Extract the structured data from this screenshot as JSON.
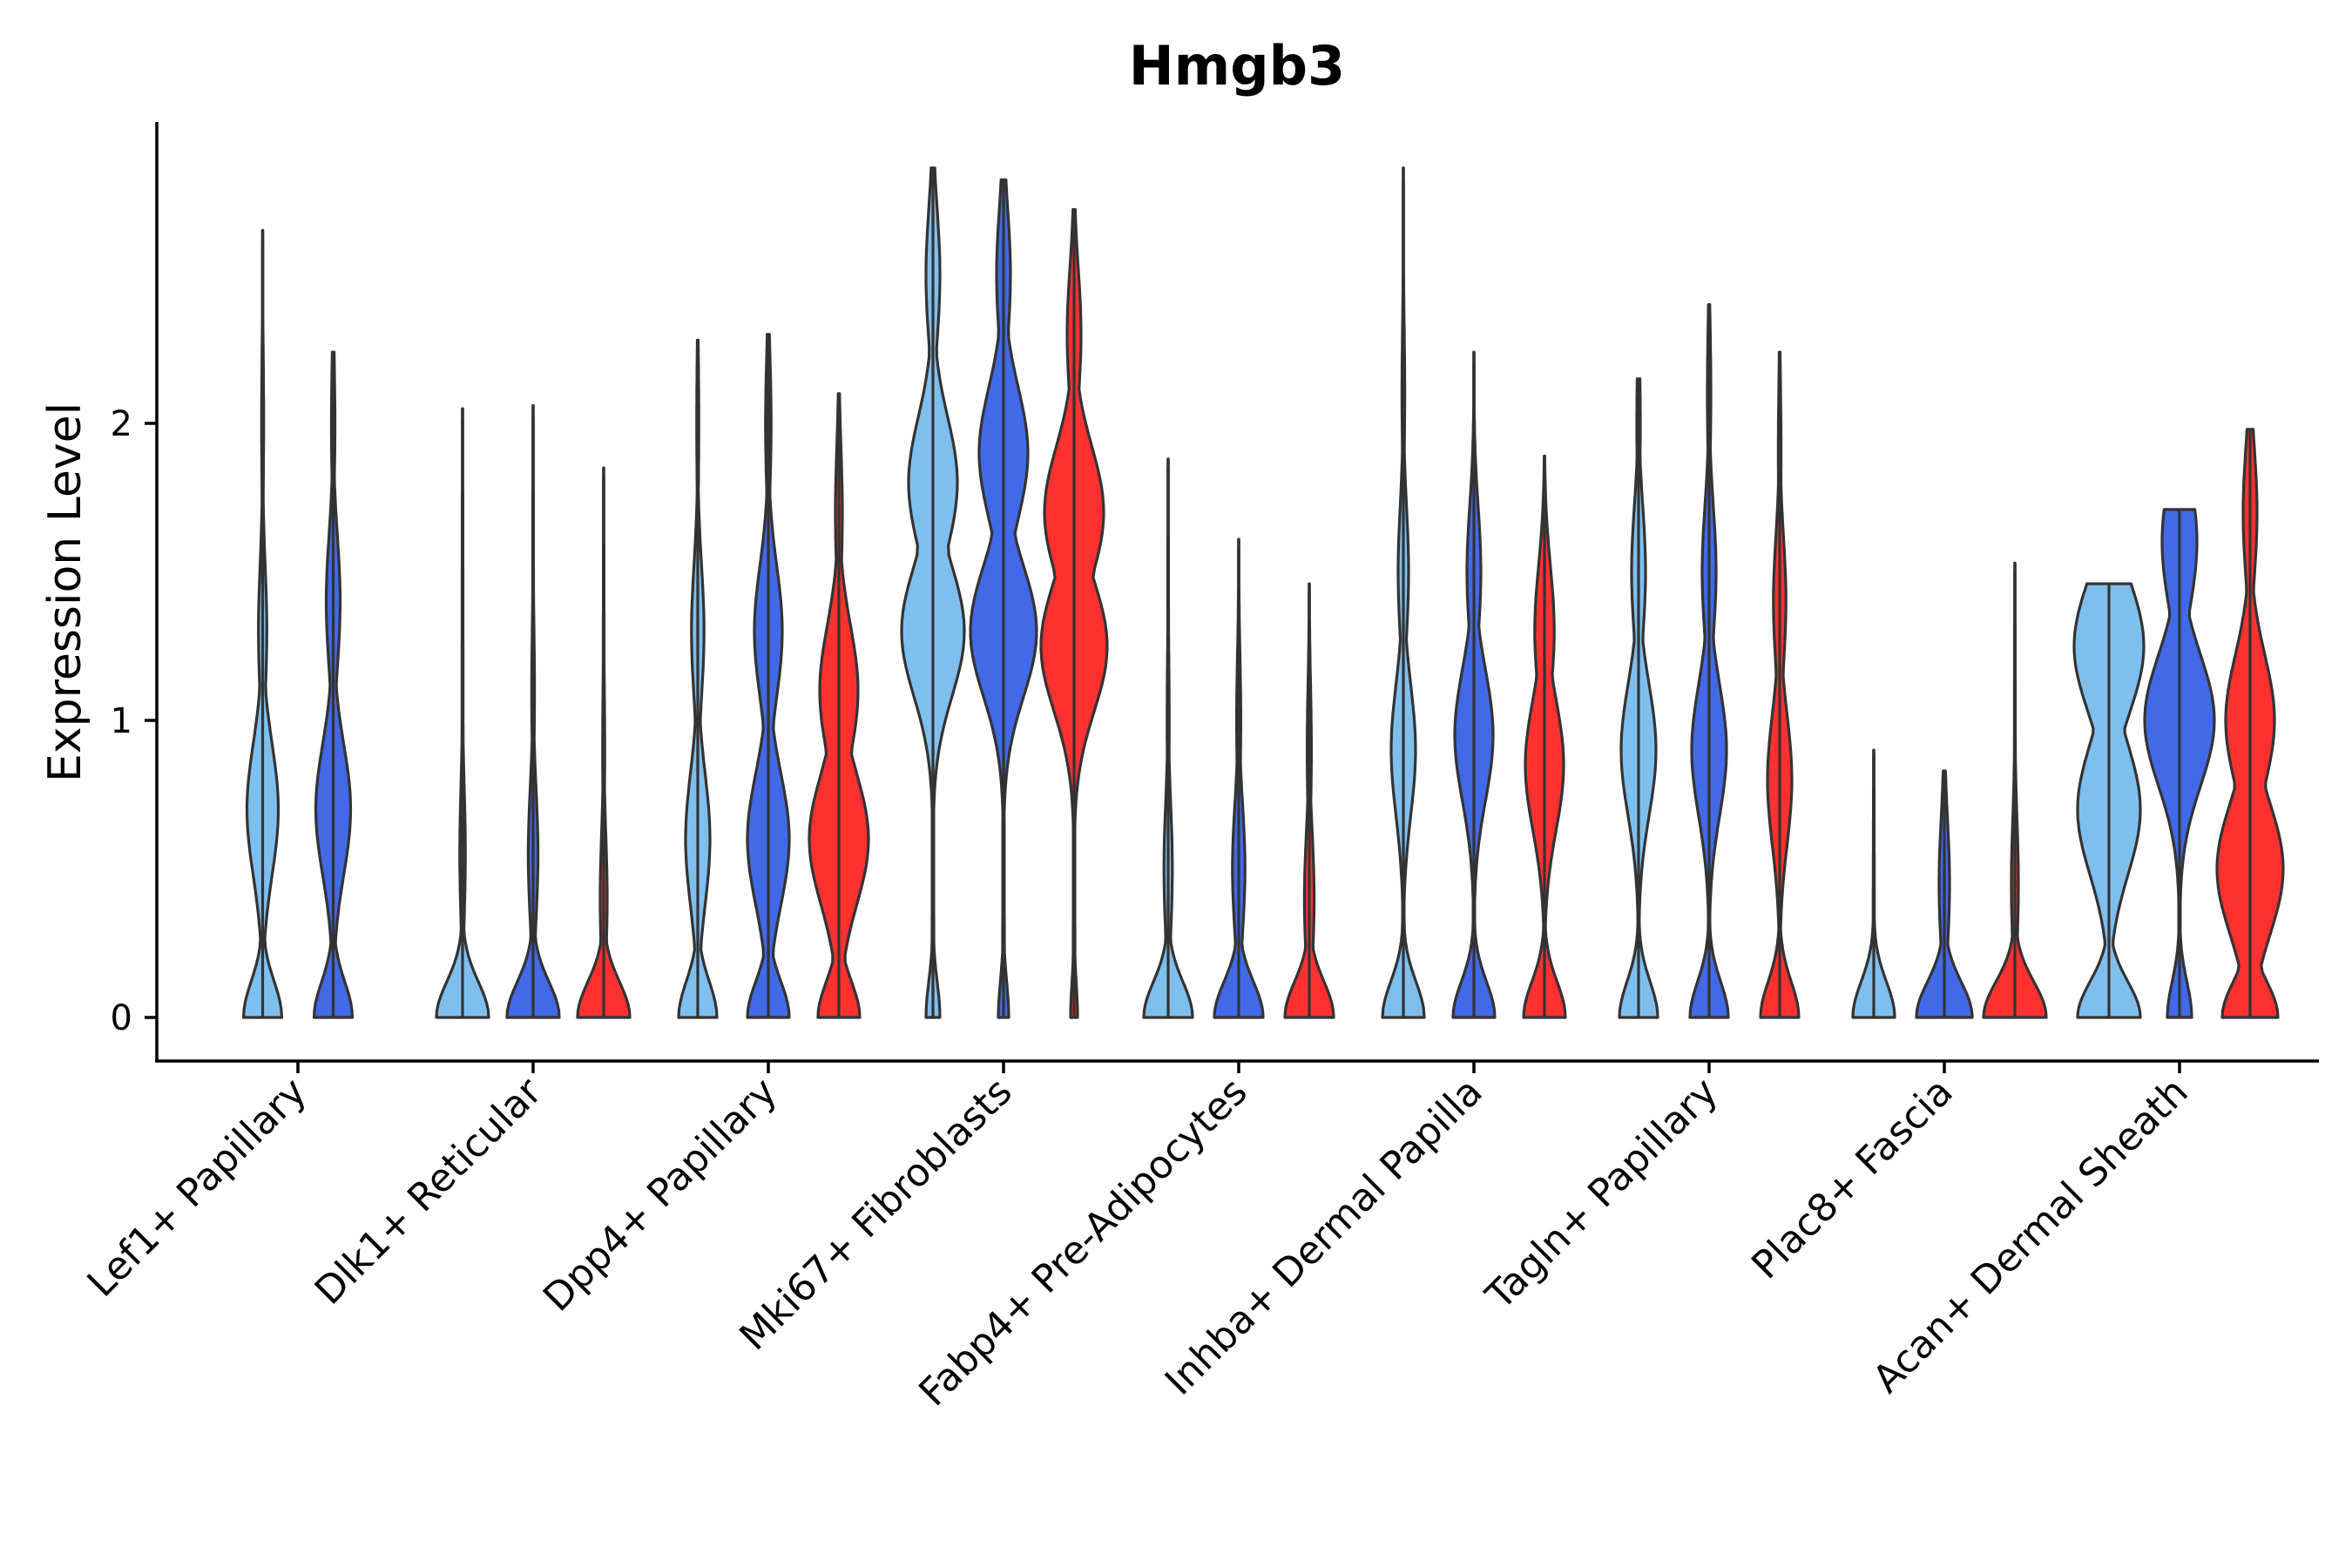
{
  "chart_data": {
    "type": "violin",
    "title": "Hmgb3",
    "xlabel": "",
    "ylabel": "Expression Level",
    "ylim": [
      -0.14,
      3.0
    ],
    "yticks": [
      0,
      1,
      2
    ],
    "grid": false,
    "legend": "none",
    "colors": [
      "#7FBFEE",
      "#4169E8",
      "#FF3030"
    ],
    "stroke": "#333333",
    "categories": [
      {
        "name": "Lef1+ Papillary",
        "violins": [
          {
            "max": 2.65,
            "modes": [
              [
                0.0,
                0.55
              ],
              [
                0.7,
                0.45
              ],
              [
                1.3,
                0.12
              ],
              [
                2.0,
                0.03
              ]
            ]
          },
          {
            "max": 2.24,
            "modes": [
              [
                0.0,
                0.55
              ],
              [
                0.7,
                0.5
              ],
              [
                1.4,
                0.2
              ],
              [
                2.0,
                0.05
              ]
            ]
          }
        ]
      },
      {
        "name": "Dlk1+ Reticular",
        "violins": [
          {
            "max": 2.05,
            "modes": [
              [
                0.0,
                0.75
              ],
              [
                0.55,
                0.08
              ]
            ]
          },
          {
            "max": 2.06,
            "modes": [
              [
                0.0,
                0.75
              ],
              [
                0.55,
                0.14
              ],
              [
                1.1,
                0.04
              ]
            ]
          },
          {
            "max": 1.85,
            "modes": [
              [
                0.0,
                0.75
              ],
              [
                0.4,
                0.1
              ],
              [
                0.9,
                0.03
              ]
            ]
          }
        ]
      },
      {
        "name": "Dpp4+ Papillary",
        "violins": [
          {
            "max": 2.28,
            "modes": [
              [
                0.0,
                0.55
              ],
              [
                0.6,
                0.35
              ],
              [
                1.3,
                0.18
              ],
              [
                2.0,
                0.03
              ]
            ]
          },
          {
            "max": 2.3,
            "modes": [
              [
                0.0,
                0.6
              ],
              [
                0.6,
                0.6
              ],
              [
                1.3,
                0.4
              ],
              [
                2.0,
                0.08
              ]
            ]
          },
          {
            "max": 2.1,
            "modes": [
              [
                0.0,
                0.6
              ],
              [
                0.6,
                0.85
              ],
              [
                1.1,
                0.55
              ],
              [
                1.7,
                0.1
              ]
            ]
          }
        ]
      },
      {
        "name": "Mki67+ Fibroblasts",
        "violins": [
          {
            "max": 2.86,
            "modes": [
              [
                0.0,
                0.2
              ],
              [
                1.3,
                0.9
              ],
              [
                1.8,
                0.7
              ],
              [
                2.5,
                0.2
              ]
            ]
          },
          {
            "max": 2.82,
            "modes": [
              [
                0.0,
                0.15
              ],
              [
                1.3,
                0.95
              ],
              [
                1.9,
                0.7
              ],
              [
                2.5,
                0.2
              ]
            ]
          },
          {
            "max": 2.72,
            "modes": [
              [
                0.0,
                0.1
              ],
              [
                1.25,
                0.95
              ],
              [
                1.7,
                0.85
              ],
              [
                2.3,
                0.2
              ]
            ]
          }
        ]
      },
      {
        "name": "Fabp4+ Pre-Adipocytes",
        "violins": [
          {
            "max": 1.88,
            "modes": [
              [
                0.0,
                0.7
              ],
              [
                0.5,
                0.12
              ],
              [
                1.0,
                0.03
              ]
            ]
          },
          {
            "max": 1.61,
            "modes": [
              [
                0.0,
                0.7
              ],
              [
                0.5,
                0.18
              ],
              [
                1.0,
                0.06
              ]
            ]
          },
          {
            "max": 1.46,
            "modes": [
              [
                0.0,
                0.7
              ],
              [
                0.4,
                0.14
              ],
              [
                0.9,
                0.06
              ]
            ]
          }
        ]
      },
      {
        "name": "Inhba+ Dermal Papilla",
        "violins": [
          {
            "max": 2.86,
            "modes": [
              [
                0.0,
                0.6
              ],
              [
                0.9,
                0.35
              ],
              [
                1.5,
                0.15
              ],
              [
                2.1,
                0.04
              ]
            ]
          },
          {
            "max": 2.24,
            "modes": [
              [
                0.0,
                0.6
              ],
              [
                0.95,
                0.55
              ],
              [
                1.5,
                0.2
              ]
            ]
          },
          {
            "max": 1.89,
            "modes": [
              [
                0.0,
                0.6
              ],
              [
                0.85,
                0.55
              ],
              [
                1.3,
                0.28
              ]
            ]
          }
        ]
      },
      {
        "name": "Tagln+ Papillary",
        "violins": [
          {
            "max": 2.15,
            "modes": [
              [
                0.0,
                0.55
              ],
              [
                0.9,
                0.5
              ],
              [
                1.5,
                0.2
              ],
              [
                2.0,
                0.05
              ]
            ]
          },
          {
            "max": 2.4,
            "modes": [
              [
                0.0,
                0.55
              ],
              [
                0.9,
                0.5
              ],
              [
                1.5,
                0.2
              ],
              [
                2.1,
                0.05
              ]
            ]
          },
          {
            "max": 2.24,
            "modes": [
              [
                0.0,
                0.55
              ],
              [
                0.8,
                0.35
              ],
              [
                1.4,
                0.18
              ],
              [
                1.9,
                0.04
              ]
            ]
          }
        ]
      },
      {
        "name": "Plac8+ Fascia",
        "violins": [
          {
            "max": 0.9,
            "modes": [
              [
                0.0,
                0.6
              ],
              [
                0.5,
                0.005
              ]
            ]
          },
          {
            "max": 0.83,
            "modes": [
              [
                0.0,
                0.8
              ],
              [
                0.45,
                0.15
              ]
            ]
          },
          {
            "max": 1.53,
            "modes": [
              [
                0.0,
                0.9
              ],
              [
                0.45,
                0.1
              ]
            ]
          }
        ]
      },
      {
        "name": "Acan+ Dermal Sheath",
        "violins": [
          {
            "max": 1.46,
            "modes": [
              [
                0.0,
                0.9
              ],
              [
                0.7,
                0.9
              ],
              [
                1.25,
                1.0
              ]
            ]
          },
          {
            "max": 1.71,
            "modes": [
              [
                0.0,
                0.35
              ],
              [
                1.0,
                1.0
              ],
              [
                1.6,
                0.5
              ]
            ]
          },
          {
            "max": 1.98,
            "modes": [
              [
                0.0,
                0.8
              ],
              [
                0.5,
                0.95
              ],
              [
                1.0,
                0.7
              ],
              [
                1.7,
                0.2
              ]
            ]
          }
        ]
      }
    ]
  }
}
